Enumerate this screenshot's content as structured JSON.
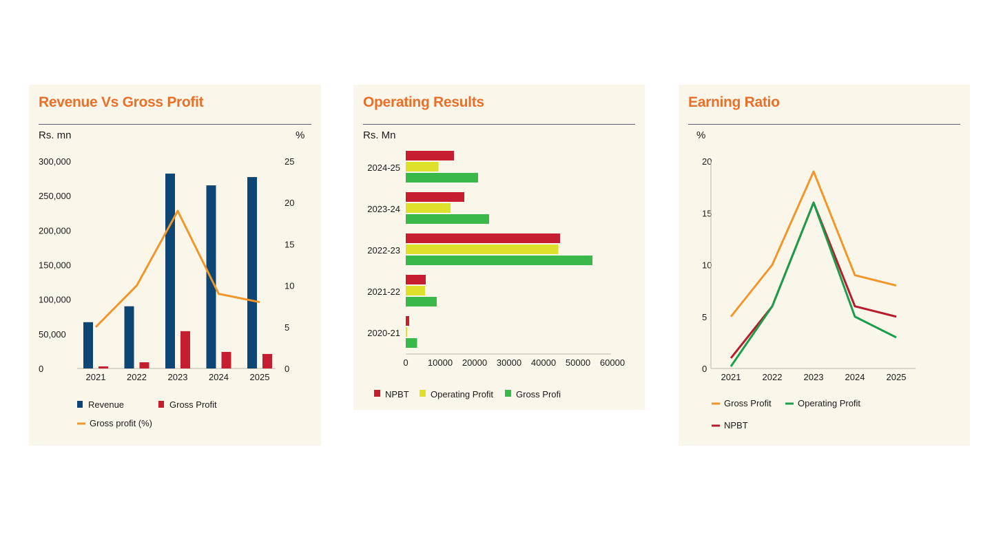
{
  "chart_data": [
    {
      "type": "bar",
      "title": "Revenue Vs Gross Profit",
      "ylabel": "Rs. mn",
      "y2label": "%",
      "categories": [
        "2021",
        "2022",
        "2023",
        "2024",
        "2025"
      ],
      "ylim": [
        0,
        300000
      ],
      "y2lim": [
        0,
        25
      ],
      "y_ticks": [
        "300,000",
        "250,000",
        "200,000",
        "150,000",
        "100,000",
        "50,000",
        "0"
      ],
      "y2_ticks": [
        "25",
        "20",
        "15",
        "10",
        "5",
        "0"
      ],
      "series": [
        {
          "name": "Revenue",
          "kind": "bar",
          "axis": "left",
          "color": "#0d4574",
          "values": [
            67000,
            90000,
            282000,
            265000,
            277000
          ]
        },
        {
          "name": "Gross Profit",
          "kind": "bar",
          "axis": "left",
          "color": "#c41e30",
          "values": [
            3000,
            9000,
            54000,
            24000,
            21000
          ]
        },
        {
          "name": "Gross profit (%)",
          "kind": "line",
          "axis": "right",
          "color": "#f0962a",
          "values": [
            5,
            10,
            19,
            9,
            8
          ]
        }
      ],
      "grid": false,
      "legend": "bottom-left"
    },
    {
      "type": "bar",
      "orientation": "horizontal",
      "title": "Operating Results",
      "ylabel": "Rs. Mn",
      "categories": [
        "2024-25",
        "2023-24",
        "2022-23",
        "2021-22",
        "2020-21"
      ],
      "xlim": [
        0,
        60000
      ],
      "x_ticks": [
        "0",
        "10000",
        "20000",
        "30000",
        "40000",
        "50000",
        "60000"
      ],
      "series": [
        {
          "name": "NPBT",
          "color": "#c41e30",
          "values": [
            14000,
            17000,
            44800,
            5800,
            1000
          ]
        },
        {
          "name": "Operating Profit",
          "color": "#dde12c",
          "values": [
            9500,
            13000,
            44300,
            5600,
            400
          ]
        },
        {
          "name": "Gross Profi",
          "color": "#3bb84a",
          "values": [
            21000,
            24200,
            54200,
            9000,
            3300
          ]
        }
      ],
      "grid": false,
      "legend": "bottom-left"
    },
    {
      "type": "line",
      "title": "Earning Ratio",
      "ylabel": "%",
      "categories": [
        "2021",
        "2022",
        "2023",
        "2024",
        "2025"
      ],
      "ylim": [
        0,
        20
      ],
      "y_ticks": [
        "20",
        "15",
        "10",
        "5",
        "0"
      ],
      "series": [
        {
          "name": "Gross Profit",
          "color": "#f0962a",
          "values": [
            5,
            10,
            19,
            9,
            8
          ]
        },
        {
          "name": "Operating Profit",
          "color": "#1a9e4b",
          "values": [
            0.2,
            6,
            16,
            5,
            3
          ]
        },
        {
          "name": "NPBT",
          "color": "#b71c2c",
          "values": [
            1,
            6,
            16,
            6,
            5
          ]
        }
      ],
      "grid": false,
      "legend": "bottom-left"
    }
  ]
}
